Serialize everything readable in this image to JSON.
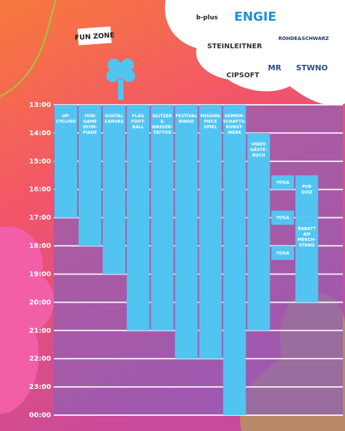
{
  "title": "FUN ZONE",
  "logos": [
    "b-plus",
    "ENGIE",
    "STEINLEITNER",
    "ROHDE&SCHWARZ",
    "CIPSOFT",
    "MR",
    "STWNO"
  ],
  "schedule": {
    "yticks": [
      {
        "value": 13,
        "label": "13:00"
      },
      {
        "value": 14,
        "label": "14:00"
      },
      {
        "value": 15,
        "label": "15:00"
      },
      {
        "value": 16,
        "label": "16:00"
      },
      {
        "value": 17,
        "label": "17:00"
      },
      {
        "value": 18,
        "label": "18:00"
      },
      {
        "value": 19,
        "label": "19:00"
      },
      {
        "value": 20,
        "label": "20:00"
      },
      {
        "value": 21,
        "label": "21:00"
      },
      {
        "value": 22,
        "label": "22:00"
      },
      {
        "value": 23,
        "label": "23:00"
      },
      {
        "value": 24,
        "label": "00:00"
      }
    ],
    "ylim": [
      13,
      24
    ],
    "color": "#52c4f2",
    "columns": [
      [
        {
          "label": [
            "UP-",
            "CYCLING"
          ],
          "start": 13,
          "end": 17
        }
      ],
      [
        {
          "label": [
            "MINI",
            "GAME",
            "OLYM-",
            "PIADE"
          ],
          "start": 13,
          "end": 18
        }
      ],
      [
        {
          "label": [
            "DIGITAL",
            "CANVAS"
          ],
          "start": 13,
          "end": 19
        }
      ],
      [
        {
          "label": [
            "FLAG",
            "FOOT-",
            "BALL"
          ],
          "start": 13,
          "end": 21
        }
      ],
      [
        {
          "label": [
            "GLITZER",
            "&",
            "WASSER-",
            "TATTOO"
          ],
          "start": 13,
          "end": 21
        }
      ],
      [
        {
          "label": [
            "FESTIVAL",
            "BINGO"
          ],
          "start": 13,
          "end": 22
        }
      ],
      [
        {
          "label": [
            "MISSING",
            "PIECE",
            "SPIEL"
          ],
          "start": 13,
          "end": 22
        }
      ],
      [
        {
          "label": [
            "GEMEIN-",
            "SCHAFTS-",
            "KUNST-",
            "WERK"
          ],
          "start": 13,
          "end": 24
        }
      ],
      [
        {
          "label": [
            "VIDEO",
            "GÄSTE-",
            "BUCH"
          ],
          "start": 14,
          "end": 21
        }
      ],
      [
        {
          "label": [
            "YOGA"
          ],
          "start": 15.5,
          "end": 16
        },
        {
          "label": [
            "YOGA"
          ],
          "start": 16.75,
          "end": 17.25
        },
        {
          "label": [
            "YOGA"
          ],
          "start": 18,
          "end": 18.5
        }
      ],
      [
        {
          "label": [
            "PUB",
            "QUIZ"
          ],
          "start": 15.5,
          "end": 17
        },
        {
          "label": [
            "RABATT",
            "AM",
            "MERCH-",
            "STAND"
          ],
          "start": 17,
          "end": 20
        }
      ]
    ]
  }
}
